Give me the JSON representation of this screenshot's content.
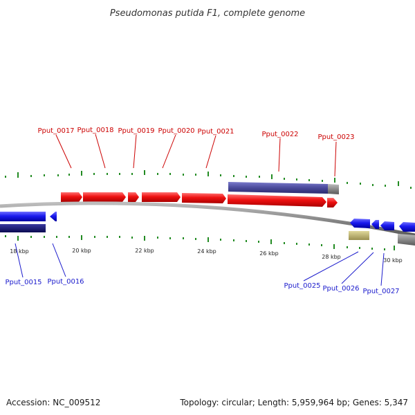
{
  "title": "Pseudomonas putida F1, complete genome",
  "footer": {
    "accession": "Accession: NC_009512",
    "stats": "Topology: circular; Length: 5,959,964 bp; Genes: 5,347"
  },
  "scale_labels": [
    "18 kbp",
    "20 kbp",
    "22 kbp",
    "24 kbp",
    "26 kbp",
    "28 kbp",
    "30 kbp"
  ],
  "genes_forward": [
    "Pput_0017",
    "Pput_0018",
    "Pput_0019",
    "Pput_0020",
    "Pput_0021",
    "Pput_0022",
    "Pput_0023"
  ],
  "genes_reverse": [
    "Pput_0015",
    "Pput_0016",
    "Pput_0025",
    "Pput_0026",
    "Pput_0027"
  ],
  "colors": {
    "forward_gene": "#ee1111",
    "reverse_gene": "#1a1aee",
    "backbone": "#8a8a8a",
    "tick": "#228b22",
    "forward_label": "#cc0000",
    "reverse_label": "#1a1acc",
    "rna_track": "#4a4a9a",
    "pseudo_track": "#bdb76b"
  }
}
